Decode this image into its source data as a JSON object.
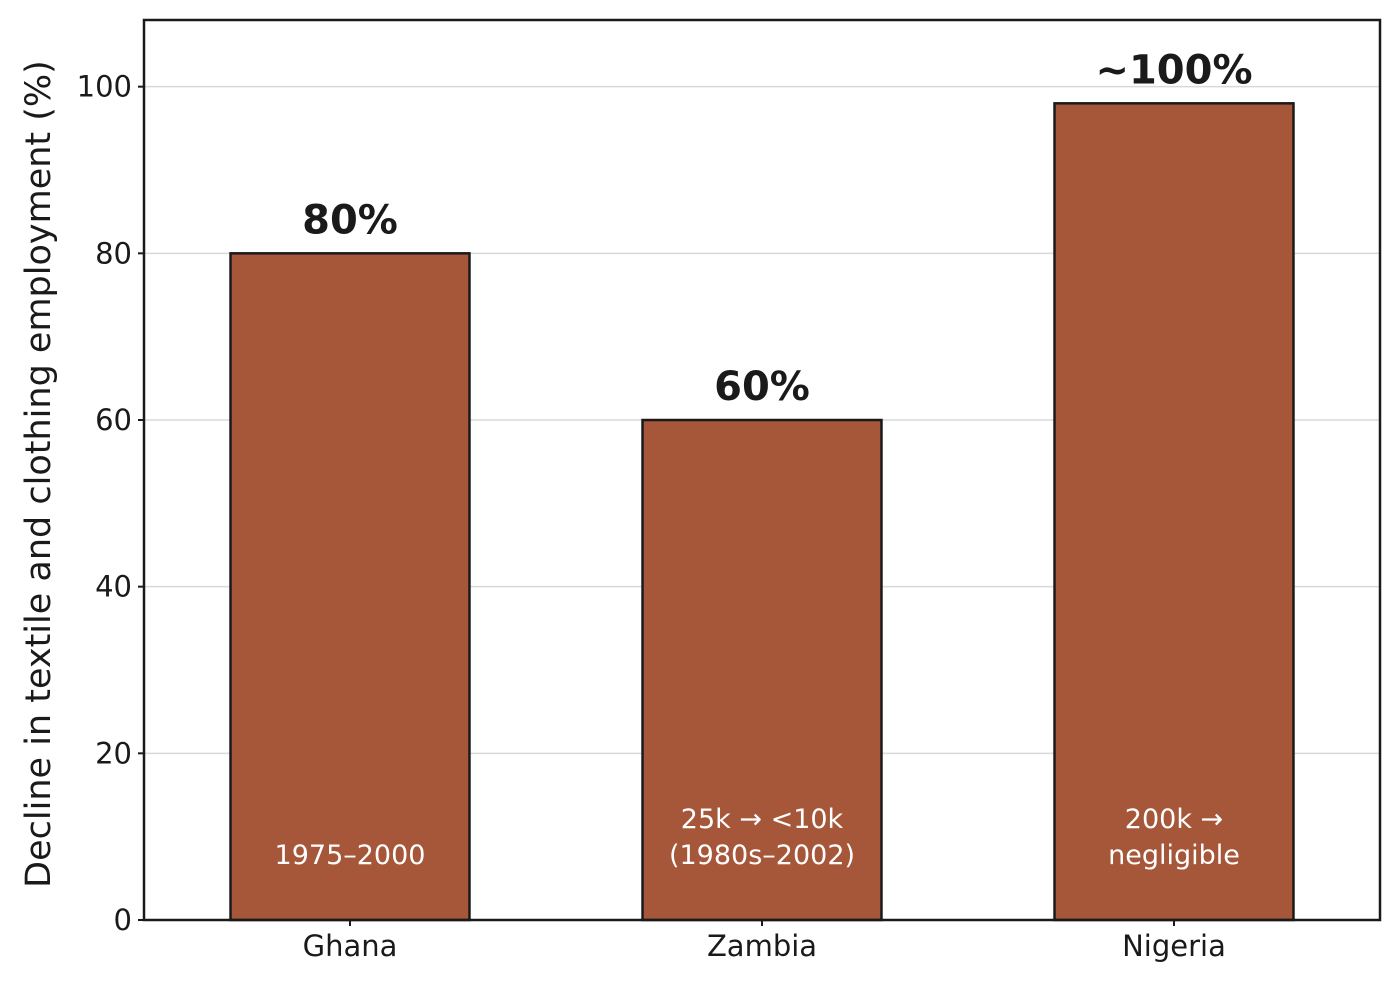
{
  "chart_data": {
    "type": "bar",
    "categories": [
      "Ghana",
      "Zambia",
      "Nigeria"
    ],
    "values": [
      80,
      60,
      98
    ],
    "value_labels": [
      "80%",
      "60%",
      "~100%"
    ],
    "bar_notes": [
      [
        "1975–2000"
      ],
      [
        "25k → <10k",
        "(1980s–2002)"
      ],
      [
        "200k →",
        "negligible"
      ]
    ],
    "title": "",
    "xlabel": "",
    "ylabel": "Decline in textile and clothing employment (%)",
    "ylim": [
      0,
      108
    ],
    "yticks": [
      0,
      20,
      40,
      60,
      80,
      100
    ],
    "grid": "horizontal",
    "bar_color": "#a65639",
    "bar_edge_color": "#1a1a1a",
    "grid_color": "#d9d9d9"
  }
}
